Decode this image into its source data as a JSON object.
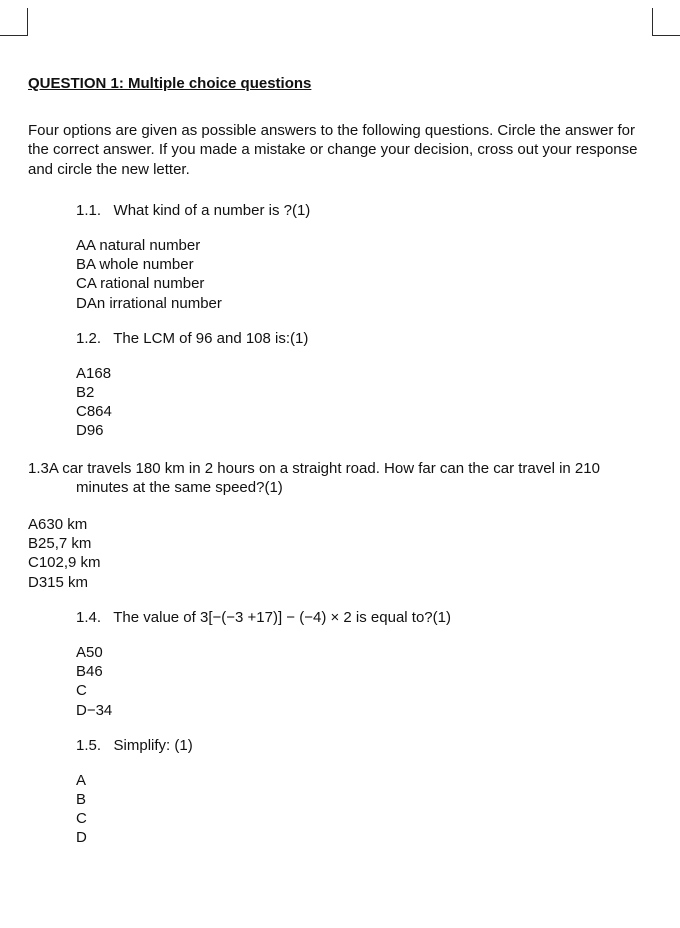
{
  "title": "QUESTION 1: Multiple choice questions",
  "intro": "Four options are given as possible answers to the following questions. Circle the answer for the correct answer. If you made a mistake or change your decision, cross out your response and circle the new letter.",
  "q": {
    "q1": {
      "num": "1.1.",
      "text": "What kind of a number is ?(1)",
      "opts": {
        "a": "AA natural number",
        "b": "BA whole number",
        "c": "CA rational number",
        "d": "DAn irrational number"
      }
    },
    "q2": {
      "num": "1.2.",
      "text": "The LCM of 96 and 108 is:(1)",
      "opts": {
        "a": "A168",
        "b": "B2",
        "c": "C864",
        "d": "D96"
      }
    },
    "q3": {
      "line1": "1.3A car travels 180 km in 2 hours on a straight road.  How far can the car travel in 210 minutes at the same speed?(1)",
      "opts": {
        "a": "A630 km",
        "b": "B25,7 km",
        "c": "C102,9 km",
        "d": "D315 km"
      }
    },
    "q4": {
      "num": "1.4.",
      "text": "The value of 3[−(−3 +17)] − (−4) × 2 is equal to?(1)",
      "opts": {
        "a": "A50",
        "b": "B46",
        "c": "C",
        "d": "D−34"
      }
    },
    "q5": {
      "num": "1.5.",
      "text": "Simplify:   (1)",
      "opts": {
        "a": "A",
        "b": "B",
        "c": "C",
        "d": "D"
      }
    }
  }
}
